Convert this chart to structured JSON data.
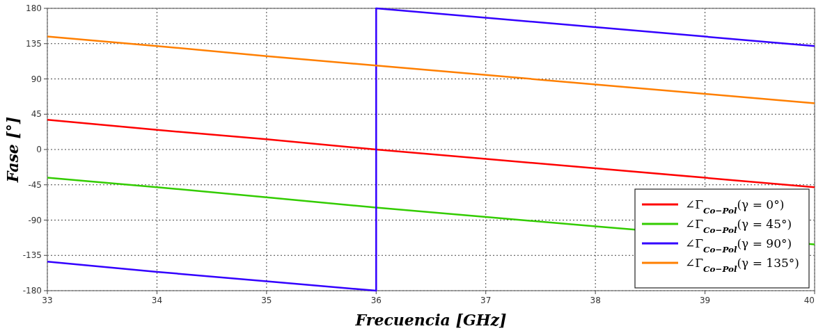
{
  "chart_data": {
    "type": "line",
    "xlabel": "Frecuencia [GHz]",
    "ylabel": "Fase [°]",
    "x": [
      33,
      34,
      35,
      36,
      37,
      38,
      39,
      40
    ],
    "xlim": [
      33,
      40
    ],
    "xticks": [
      33,
      34,
      35,
      36,
      37,
      38,
      39,
      40
    ],
    "ylim": [
      -180,
      180
    ],
    "yticks": [
      -180,
      -135,
      -90,
      -45,
      0,
      45,
      90,
      135,
      180
    ],
    "grid": true,
    "legend": "bottom right",
    "line_style": "solid",
    "marker": "none",
    "series": [
      {
        "name": "∠Γ$_{Co−Pol}$(γ = 0°)",
        "color": "#ff0000",
        "values": [
          38,
          25,
          13,
          0,
          -12,
          -24,
          -36,
          -48
        ]
      },
      {
        "name": "∠Γ$_{Co−Pol}$(γ = 45°)",
        "color": "#33cc00",
        "x": [
          33,
          34,
          35,
          36,
          37,
          38,
          40
        ],
        "values": [
          -36,
          -48,
          -61,
          -74,
          -86,
          -98,
          -121
        ]
      },
      {
        "name": "∠Γ$_{Co−Pol}$(γ = 90°)",
        "color": "#3300ff",
        "x": [
          33,
          34,
          35,
          36,
          36,
          37,
          38,
          39,
          40
        ],
        "values": [
          -143,
          -156,
          -168,
          -180,
          180,
          168,
          156,
          144,
          132
        ]
      },
      {
        "name": "∠Γ$_{Co−Pol}$(γ = 135°)",
        "color": "#ff7f00",
        "values": [
          144,
          132,
          119,
          107,
          95,
          83,
          71,
          59
        ]
      }
    ]
  }
}
